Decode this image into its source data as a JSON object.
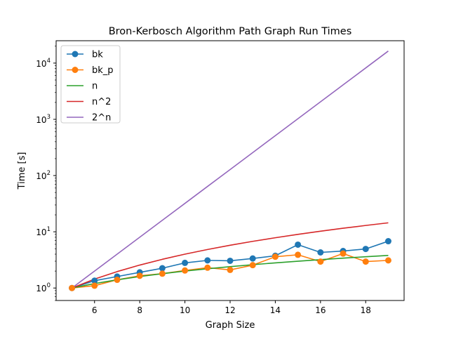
{
  "chart_data": {
    "type": "line",
    "title": "Bron-Kerbosch Algorithm Path Graph Run Times",
    "xlabel": "Graph Size",
    "ylabel": "Time [s]",
    "xlim": [
      4.3,
      19.7
    ],
    "ylim": [
      0.6,
      25000
    ],
    "yscale": "log",
    "grid": false,
    "legend_position": "top-left",
    "x_ticks": [
      6,
      8,
      10,
      12,
      14,
      16,
      18
    ],
    "y_ticks": [
      {
        "value": 1,
        "base": "10",
        "exp": "0"
      },
      {
        "value": 10,
        "base": "10",
        "exp": "1"
      },
      {
        "value": 100,
        "base": "10",
        "exp": "2"
      },
      {
        "value": 1000,
        "base": "10",
        "exp": "3"
      },
      {
        "value": 10000,
        "base": "10",
        "exp": "4"
      }
    ],
    "series": [
      {
        "name": "bk",
        "color": "#1f77b4",
        "marker": true,
        "x": [
          5,
          6,
          7,
          8,
          9,
          10,
          11,
          12,
          13,
          14,
          15,
          16,
          17,
          18,
          19
        ],
        "y": [
          1.0,
          1.35,
          1.6,
          1.9,
          2.25,
          2.8,
          3.1,
          3.05,
          3.35,
          3.75,
          5.9,
          4.3,
          4.55,
          4.95,
          6.8
        ]
      },
      {
        "name": "bk_p",
        "color": "#ff7f0e",
        "marker": true,
        "x": [
          5,
          6,
          7,
          8,
          9,
          10,
          11,
          12,
          13,
          14,
          15,
          16,
          17,
          18,
          19
        ],
        "y": [
          1.0,
          1.1,
          1.4,
          1.65,
          1.8,
          2.05,
          2.3,
          2.1,
          2.55,
          3.6,
          3.9,
          2.95,
          4.1,
          2.95,
          3.1
        ]
      },
      {
        "name": "n",
        "color": "#2ca02c",
        "marker": false,
        "x": [
          5,
          6,
          7,
          8,
          9,
          10,
          11,
          12,
          13,
          14,
          15,
          16,
          17,
          18,
          19
        ],
        "y": [
          1.0,
          1.2,
          1.4,
          1.6,
          1.8,
          2.0,
          2.2,
          2.4,
          2.6,
          2.8,
          3.0,
          3.2,
          3.4,
          3.6,
          3.8
        ]
      },
      {
        "name": "n^2",
        "color": "#d62728",
        "marker": false,
        "x": [
          5,
          6,
          7,
          8,
          9,
          10,
          11,
          12,
          13,
          14,
          15,
          16,
          17,
          18,
          19
        ],
        "y": [
          1.0,
          1.44,
          1.96,
          2.56,
          3.24,
          4.0,
          4.84,
          5.76,
          6.76,
          7.84,
          9.0,
          10.24,
          11.56,
          12.96,
          14.44
        ]
      },
      {
        "name": "2^n",
        "color": "#9467bd",
        "marker": false,
        "x": [
          5,
          6,
          7,
          8,
          9,
          10,
          11,
          12,
          13,
          14,
          15,
          16,
          17,
          18,
          19
        ],
        "y": [
          1,
          2,
          4,
          8,
          16,
          32,
          64,
          128,
          256,
          512,
          1024,
          2048,
          4096,
          8192,
          16384
        ]
      }
    ]
  }
}
